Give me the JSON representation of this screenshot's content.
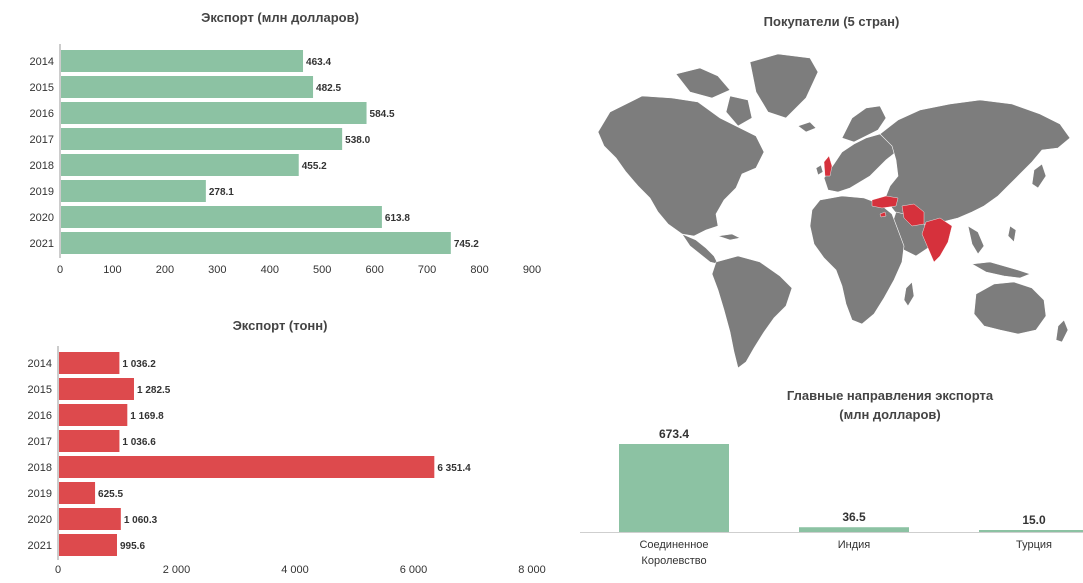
{
  "colors": {
    "green": "#8cc2a3",
    "red": "#dd4a4d",
    "map_land": "#7d7d7d",
    "map_highlight": "#d6313c",
    "axis": "#999999",
    "text": "#333333"
  },
  "chart_data": [
    {
      "id": "export_usd",
      "type": "bar",
      "orientation": "horizontal",
      "title": "Экспорт (млн долларов)",
      "categories": [
        "2014",
        "2015",
        "2016",
        "2017",
        "2018",
        "2019",
        "2020",
        "2021"
      ],
      "values": [
        463.4,
        482.5,
        584.5,
        538.0,
        455.2,
        278.1,
        613.8,
        745.2
      ],
      "value_labels": [
        "463.4",
        "482.5",
        "584.5",
        "538.0",
        "455.2",
        "278.1",
        "613.8",
        "745.2"
      ],
      "xticks": [
        0,
        100,
        200,
        300,
        400,
        500,
        600,
        700,
        800,
        900
      ],
      "xtick_labels": [
        "0",
        "100",
        "200",
        "300",
        "400",
        "500",
        "600",
        "700",
        "800",
        "900"
      ],
      "xlim": [
        0,
        900
      ],
      "color": "#8cc2a3"
    },
    {
      "id": "export_tons",
      "type": "bar",
      "orientation": "horizontal",
      "title": "Экспорт (тонн)",
      "categories": [
        "2014",
        "2015",
        "2016",
        "2017",
        "2018",
        "2019",
        "2020",
        "2021"
      ],
      "values": [
        1036.2,
        1282.5,
        1169.8,
        1036.6,
        6351.4,
        625.5,
        1060.3,
        995.6
      ],
      "value_labels": [
        "1 036.2",
        "1 282.5",
        "1 169.8",
        "1 036.6",
        "6 351.4",
        "625.5",
        "1 060.3",
        "995.6"
      ],
      "xticks": [
        0,
        2000,
        4000,
        6000,
        8000
      ],
      "xtick_labels": [
        "0",
        "2 000",
        "4 000",
        "6 000",
        "8 000"
      ],
      "xlim": [
        0,
        8000
      ],
      "color": "#dd4a4d"
    },
    {
      "id": "destinations",
      "type": "bar",
      "orientation": "vertical",
      "title": "Главные направления экспорта (млн долларов)",
      "title_lines": [
        "Главные направления экспорта",
        "(млн долларов)"
      ],
      "categories": [
        "Соединенное Королевство",
        "Индия",
        "Турция"
      ],
      "category_lines": [
        [
          "Соединенное",
          "Королевство"
        ],
        [
          "Индия"
        ],
        [
          "Турция"
        ]
      ],
      "values": [
        673.4,
        36.5,
        15.0
      ],
      "value_labels": [
        "673.4",
        "36.5",
        "15.0"
      ],
      "ylim": [
        0,
        673.4
      ],
      "color": "#8cc2a3"
    }
  ],
  "map": {
    "title": "Покупатели (5 стран)",
    "highlighted": [
      "Соединенное Королевство",
      "Турция",
      "Индия",
      "Иран",
      "Кипр"
    ]
  }
}
